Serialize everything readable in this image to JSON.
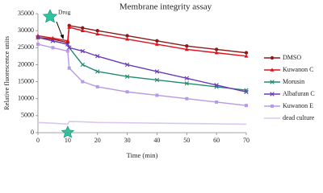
{
  "chart_data": {
    "type": "line",
    "title": "Membrane integrity assay",
    "x_label": "Time (min)",
    "y_label": "Relative fluorescence units",
    "annotation": "Drug",
    "x": [
      0,
      5,
      10,
      10.5,
      15,
      20,
      30,
      40,
      50,
      60,
      70
    ],
    "series": [
      {
        "name": "DMSO",
        "color": "#8b1a1a",
        "marker": "circle",
        "values": [
          28000,
          27500,
          26500,
          31500,
          30800,
          30000,
          28500,
          27000,
          25500,
          24500,
          23500
        ]
      },
      {
        "name": "Kuwanon C",
        "color": "#e0101a",
        "marker": "triangle",
        "values": [
          28500,
          27800,
          27000,
          31000,
          30000,
          29000,
          27500,
          26000,
          24500,
          23500,
          22500
        ]
      },
      {
        "name": "Morusin",
        "color": "#1f8a70",
        "marker": "x",
        "values": [
          28000,
          27000,
          26000,
          25000,
          20000,
          18000,
          16500,
          15500,
          14500,
          13500,
          12500
        ]
      },
      {
        "name": "Albafuran C",
        "color": "#6a3ab8",
        "marker": "x",
        "values": [
          28000,
          27000,
          26000,
          25000,
          24000,
          22500,
          20000,
          18000,
          16000,
          14000,
          12000
        ]
      },
      {
        "name": "Kuwanon E",
        "color": "#b69ae6",
        "marker": "square",
        "values": [
          26000,
          25000,
          24000,
          19000,
          15000,
          13500,
          12000,
          11000,
          10000,
          9000,
          8000
        ]
      },
      {
        "name": "dead culture",
        "color": "#d8c8f0",
        "marker": "none",
        "values": [
          3000,
          2800,
          2500,
          3300,
          3200,
          3000,
          2900,
          2800,
          2700,
          2600,
          2500
        ]
      }
    ],
    "xlim": [
      0,
      70
    ],
    "xticks": [
      0,
      10,
      20,
      30,
      40,
      50,
      60,
      70
    ],
    "ylim": [
      0,
      35000
    ],
    "yticks": [
      0,
      5000,
      10000,
      15000,
      20000,
      25000,
      30000,
      35000
    ],
    "grid": false,
    "legend": "right"
  }
}
